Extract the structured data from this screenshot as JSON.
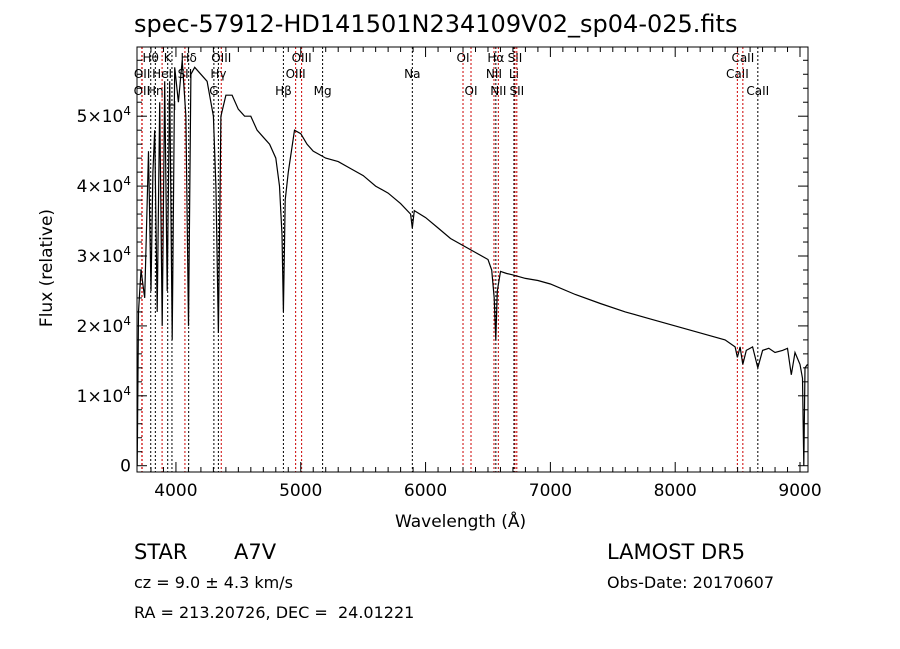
{
  "chart_data": {
    "type": "line",
    "title": "spec-57912-HD141501N234109V02_sp04-025.fits",
    "xlabel": "Wavelength (Å)",
    "ylabel": "Flux (relative)",
    "xlim": [
      3688,
      9064
    ],
    "ylim": [
      -900,
      59900
    ],
    "x_ticks": [
      4000,
      5000,
      6000,
      7000,
      8000,
      9000
    ],
    "x_tick_labels": [
      "4000",
      "5000",
      "6000",
      "7000",
      "8000",
      "9000"
    ],
    "y_ticks": [
      0,
      10000,
      20000,
      30000,
      40000,
      50000
    ],
    "y_tick_labels": [
      {
        "base": "0",
        "exp": ""
      },
      {
        "base": "1×10",
        "exp": "4"
      },
      {
        "base": "2×10",
        "exp": "4"
      },
      {
        "base": "3×10",
        "exp": "4"
      },
      {
        "base": "4×10",
        "exp": "4"
      },
      {
        "base": "5×10",
        "exp": "4"
      }
    ],
    "series": [
      {
        "name": "spectrum",
        "color": "#000000",
        "x": [
          3690,
          3700,
          3720,
          3750,
          3780,
          3800,
          3815,
          3830,
          3850,
          3870,
          3890,
          3910,
          3930,
          3950,
          3970,
          3990,
          4020,
          4050,
          4080,
          4101,
          4120,
          4150,
          4200,
          4250,
          4300,
          4320,
          4340,
          4360,
          4400,
          4450,
          4500,
          4550,
          4600,
          4650,
          4700,
          4750,
          4800,
          4830,
          4850,
          4861,
          4875,
          4900,
          4950,
          5000,
          5050,
          5100,
          5150,
          5200,
          5300,
          5400,
          5500,
          5600,
          5700,
          5800,
          5880,
          5894,
          5910,
          6000,
          6100,
          6200,
          6300,
          6400,
          6500,
          6530,
          6550,
          6563,
          6575,
          6600,
          6650,
          6700,
          6800,
          6900,
          7000,
          7200,
          7400,
          7600,
          7800,
          8000,
          8200,
          8400,
          8480,
          8498,
          8520,
          8542,
          8570,
          8620,
          8662,
          8700,
          8750,
          8800,
          8860,
          8900,
          8930,
          8960,
          9000,
          9020,
          9030,
          9040,
          9060
        ],
        "y": [
          0,
          22000,
          28000,
          24000,
          45000,
          25000,
          42000,
          48000,
          22000,
          52000,
          20000,
          55000,
          25000,
          55000,
          18000,
          57000,
          52000,
          58000,
          50000,
          20000,
          56000,
          57000,
          56000,
          55000,
          50000,
          40000,
          19000,
          50000,
          53000,
          53000,
          51000,
          50000,
          50000,
          48000,
          47000,
          46000,
          44000,
          40000,
          33000,
          22000,
          38000,
          42000,
          48000,
          47500,
          46000,
          45000,
          44500,
          44000,
          43500,
          42500,
          41500,
          40000,
          39000,
          37500,
          36000,
          34000,
          36500,
          35500,
          34000,
          32500,
          31500,
          30500,
          29500,
          28000,
          24000,
          18000,
          25000,
          27800,
          27500,
          27300,
          26800,
          26500,
          26000,
          24500,
          23200,
          22000,
          21000,
          20000,
          19000,
          18000,
          17000,
          15500,
          17000,
          14500,
          16500,
          17000,
          14000,
          16500,
          16800,
          16200,
          16500,
          16800,
          13000,
          16200,
          14500,
          12500,
          0,
          14000,
          14500
        ]
      }
    ],
    "line_markers": [
      {
        "wavelength": 3727,
        "label": "OII",
        "color": "#cc0000",
        "row": 3
      },
      {
        "wavelength": 3729,
        "label": "OII",
        "color": "#cc0000",
        "row": 2
      },
      {
        "wavelength": 3798,
        "label": "Hθ",
        "color": "#000000",
        "row": 1
      },
      {
        "wavelength": 3835,
        "label": "Hη",
        "color": "#000000",
        "row": 3
      },
      {
        "wavelength": 3889,
        "label": "HeI",
        "color": "#cc0000",
        "row": 2
      },
      {
        "wavelength": 3934,
        "label": "K",
        "color": "#000000",
        "row": 1
      },
      {
        "wavelength": 3968,
        "label": "H",
        "color": "#000000",
        "row": 4
      },
      {
        "wavelength": 4072,
        "label": "SII",
        "color": "#cc0000",
        "row": 2
      },
      {
        "wavelength": 4102,
        "label": "Hδ",
        "color": "#000000",
        "row": 1
      },
      {
        "wavelength": 4304,
        "label": "G",
        "color": "#000000",
        "row": 3
      },
      {
        "wavelength": 4340,
        "label": "Hγ",
        "color": "#000000",
        "row": 2
      },
      {
        "wavelength": 4363,
        "label": "OIII",
        "color": "#cc0000",
        "row": 1
      },
      {
        "wavelength": 4861,
        "label": "Hβ",
        "color": "#000000",
        "row": 3
      },
      {
        "wavelength": 4959,
        "label": "OIII",
        "color": "#cc0000",
        "row": 2
      },
      {
        "wavelength": 5007,
        "label": "OIII",
        "color": "#cc0000",
        "row": 1
      },
      {
        "wavelength": 5175,
        "label": "Mg",
        "color": "#000000",
        "row": 3
      },
      {
        "wavelength": 5894,
        "label": "Na",
        "color": "#000000",
        "row": 2
      },
      {
        "wavelength": 6300,
        "label": "OI",
        "color": "#cc0000",
        "row": 1
      },
      {
        "wavelength": 6364,
        "label": "OI",
        "color": "#cc0000",
        "row": 3
      },
      {
        "wavelength": 6548,
        "label": "NII",
        "color": "#cc0000",
        "row": 2
      },
      {
        "wavelength": 6563,
        "label": "Hα",
        "color": "#000000",
        "row": 1
      },
      {
        "wavelength": 6583,
        "label": "NII",
        "color": "#cc0000",
        "row": 3
      },
      {
        "wavelength": 6708,
        "label": "Li",
        "color": "#000000",
        "row": 2
      },
      {
        "wavelength": 6716,
        "label": "SII",
        "color": "#cc0000",
        "row": 1
      },
      {
        "wavelength": 6731,
        "label": "SII",
        "color": "#cc0000",
        "row": 3
      },
      {
        "wavelength": 8498,
        "label": "CaII",
        "color": "#cc0000",
        "row": 2
      },
      {
        "wavelength": 8542,
        "label": "CaII",
        "color": "#cc0000",
        "row": 1
      },
      {
        "wavelength": 8662,
        "label": "CaII",
        "color": "#000000",
        "row": 3
      }
    ]
  },
  "info": {
    "object_type": "STAR",
    "subclass": "A7V",
    "survey": "LAMOST DR5",
    "redshift": "cz = 9.0 ± 4.3 km/s",
    "obs_date": "Obs-Date: 20170607",
    "coords": "RA = 213.20726, DEC =  24.01221"
  }
}
